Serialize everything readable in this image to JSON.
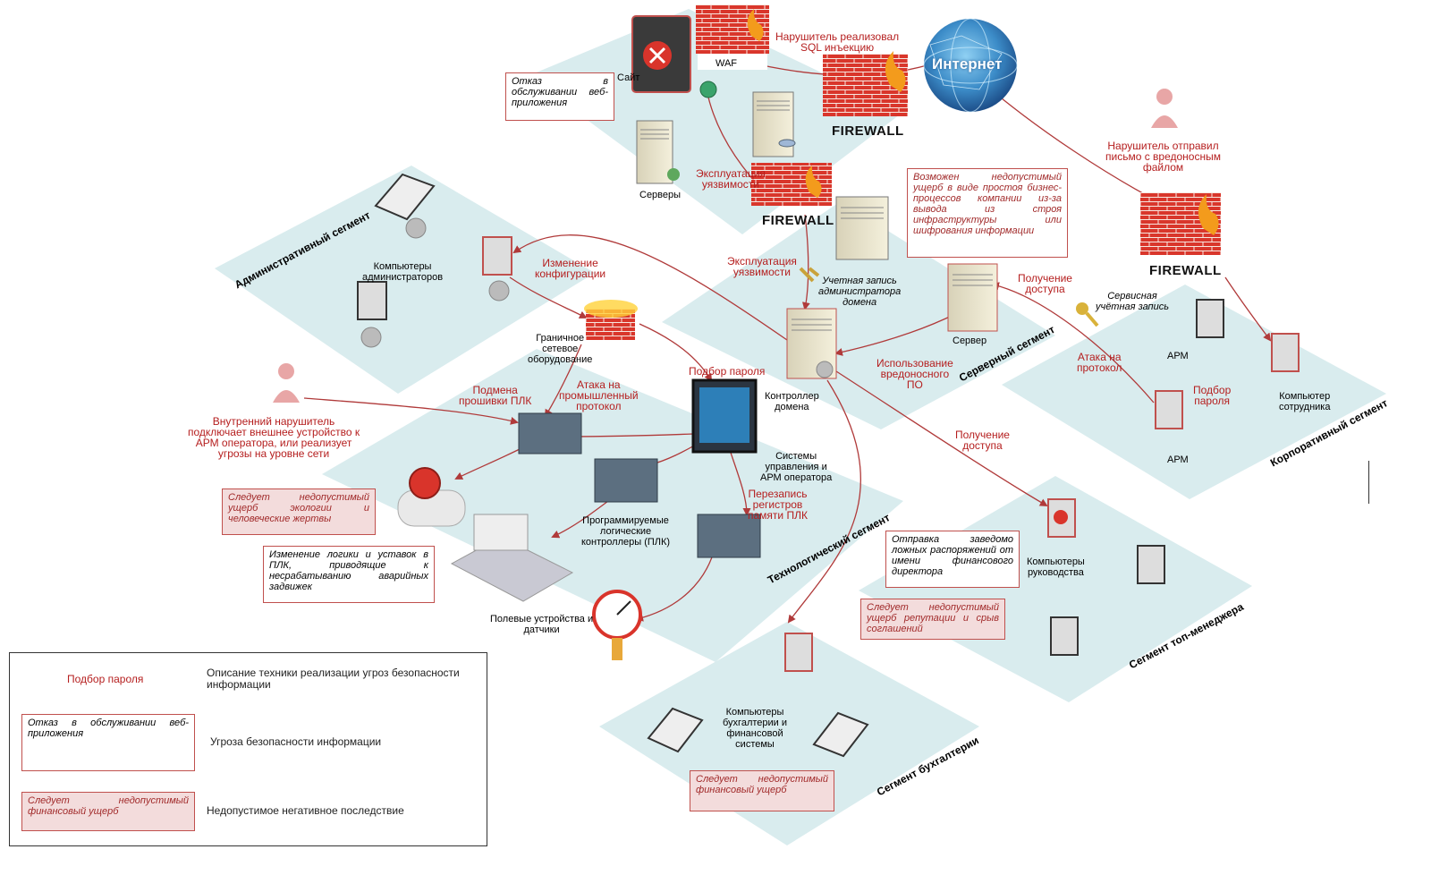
{
  "segments": {
    "admin": "Административный сегмент",
    "server": "Серверный сегмент",
    "corp": "Корпоративный сегмент",
    "tech": "Технологический сегмент",
    "topmgr": "Сегмент топ-менеджера",
    "accounting": "Сегмент бухгалтерии"
  },
  "nodes": {
    "site": "Сайт",
    "waf": "WAF",
    "servers": "Серверы",
    "internet": "Интернет",
    "firewall": "FIREWALL",
    "admin_pcs": "Компьютеры\nадминистраторов",
    "border_equipment": "Граничное\nсетевое\nоборудование",
    "domain_controller": "Контроллер\nдомена",
    "server": "Сервер",
    "admin_account": "Учетная запись\nадминистратора\nдомена",
    "service_account": "Сервисная\nучётная запись",
    "arm1": "АРМ",
    "arm2": "АРМ",
    "employee_pc": "Компьютер\nсотрудника",
    "mgmt_systems": "Системы\nуправления и\nАРМ оператора",
    "plc": "Программируемые\nлогические\nконтроллеры (ПЛК)",
    "field_devices": "Полевые устройства и\nдатчики",
    "management_pcs": "Компьютеры\nруководства",
    "accounting_pcs": "Компьютеры\nбухгалтерии и\nфинансовой\nсистемы"
  },
  "techniques": {
    "sql": "Нарушитель реализовал\nSQL инъекцию",
    "exploit1": "Эксплуатация\nуязвимости",
    "exploit2": "Эксплуатация\nуязвимости",
    "config_change": "Изменение\nконфигурации",
    "email": "Нарушитель отправил\nписьмо с вредоносным\nфайлом",
    "access1": "Получение\nдоступа",
    "access2": "Получение\nдоступа",
    "protocol_attack": "Атака на\nпротокол",
    "password_corp": "Подбор\nпароля",
    "password_tech": "Подбор пароля",
    "malware": "Использование\nвредоносного\nПО",
    "firmware": "Подмена\nпрошивки ПЛК",
    "industrial": "Атака на\nпромышленный\nпротокол",
    "insider": "Внутренний нарушитель\nподключает внешнее устройство к\nАРМ оператора, или реализует\nугрозы на уровне сети",
    "rewrite": "Перезапись\nрегистров\nпамяти ПЛК"
  },
  "threats": {
    "dos": "Отказ в\nобслуживании\nвеб-приложения",
    "plc_logic": "Изменение логики и уставок в ПЛК, приводящие к несрабатыванию аварийных задвижек",
    "false_orders": "Отправка заведомо ложных распоряжений от имени финансового директора"
  },
  "consequences": {
    "business": "Возможен недопустимый ущерб в виде простоя бизнес-процессов компании из-за вывода из строя инфраструктуры или шифрования информации",
    "ecology": "Следует недопустимый ущерб экологии и человеческие жертвы",
    "reputation": "Следует недопустимый ущерб репутации и срыв соглашений",
    "financial": "Следует недопустимый финансовый ущерб"
  },
  "legend": {
    "technique_sample": "Подбор пароля",
    "technique_desc": "Описание техники реализации угроз безопасности информации",
    "threat_sample": "Отказ в обслуживании веб-приложения",
    "threat_desc": "Угроза безопасности информации",
    "consequence_sample": "Следует недопустимый финансовый ущерб",
    "consequence_desc": "Недопустимое негативное последствие"
  },
  "colors": {
    "segment_fill": "#d9ecee",
    "attack_line": "#b03a3a",
    "technique_text": "#b51e1e",
    "consequence_fill": "#f3dcdc",
    "box_border": "#c0504d"
  }
}
